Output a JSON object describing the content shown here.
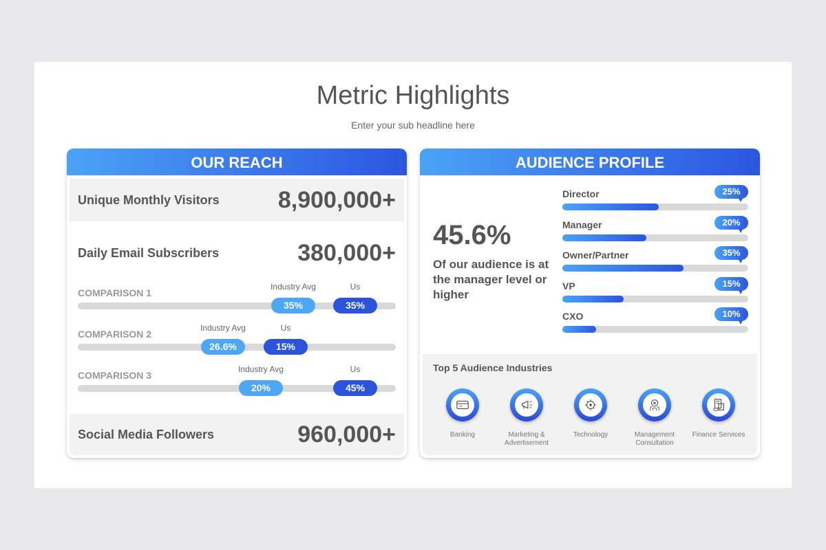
{
  "title": "Metric Highlights",
  "subtitle": "Enter your sub headline here",
  "reach": {
    "header": "OUR REACH",
    "visitors": {
      "label": "Unique Monthly Visitors",
      "value": "8,900,000+"
    },
    "email": {
      "label": "Daily Email Subscribers",
      "value": "380,000+"
    },
    "comparisons": [
      {
        "label": "COMPARISON 1",
        "industry_label": "Industry Avg",
        "industry": "35%",
        "us_label": "Us",
        "us": "35%"
      },
      {
        "label": "COMPARISON 2",
        "industry_label": "Industry Avg",
        "industry": "26.6%",
        "us_label": "Us",
        "us": "15%"
      },
      {
        "label": "COMPARISON 3",
        "industry_label": "Industry Avg",
        "industry": "20%",
        "us_label": "Us",
        "us": "45%"
      }
    ],
    "social": {
      "label": "Social Media Followers",
      "value": "960,000+"
    }
  },
  "audience": {
    "header": "AUDIENCE PROFILE",
    "big_value": "45.6%",
    "big_text": "Of our audience is at the manager level or higher",
    "roles": [
      {
        "name": "Director",
        "value": "25%",
        "fill": 0.52
      },
      {
        "name": "Manager",
        "value": "20%",
        "fill": 0.45
      },
      {
        "name": "Owner/Partner",
        "value": "35%",
        "fill": 0.65
      },
      {
        "name": "VP",
        "value": "15%",
        "fill": 0.33
      },
      {
        "name": "CXO",
        "value": "10%",
        "fill": 0.18
      }
    ],
    "industries_title": "Top 5 Audience Industries",
    "industries": [
      {
        "name": "Banking",
        "icon": "credit-card-icon"
      },
      {
        "name": "Marketing & Advertisement",
        "icon": "megaphone-icon"
      },
      {
        "name": "Technology",
        "icon": "circuit-gear-icon"
      },
      {
        "name": "Management Consultation",
        "icon": "gear-people-icon"
      },
      {
        "name": "Finance Services",
        "icon": "finance-document-icon"
      }
    ]
  },
  "colors": {
    "accent_light": "#4aa3f7",
    "accent_dark": "#2b56e0"
  }
}
